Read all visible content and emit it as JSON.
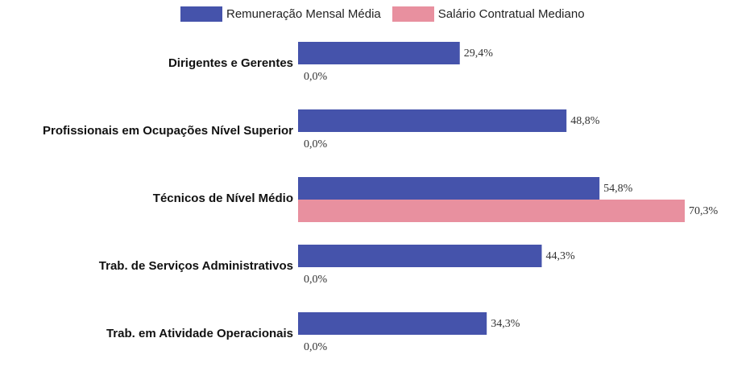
{
  "chart_data": {
    "type": "bar",
    "orientation": "horizontal",
    "categories": [
      "Dirigentes e Gerentes",
      "Profissionais em Ocupações Nível Superior",
      "Técnicos de Nível Médio",
      "Trab. de Serviços Administrativos",
      "Trab. em Atividade Operacionais"
    ],
    "series": [
      {
        "name": "Remuneração Mensal Média",
        "color": "#4553ab",
        "values": [
          29.4,
          48.8,
          54.8,
          44.3,
          34.3
        ],
        "labels": [
          "29,4%",
          "48,8%",
          "54,8%",
          "44,3%",
          "34,3%"
        ]
      },
      {
        "name": "Salário Contratual Mediano",
        "color": "#e8909f",
        "values": [
          0.0,
          0.0,
          70.3,
          0.0,
          0.0
        ],
        "labels": [
          "0,0%",
          "0,0%",
          "70,3%",
          "0,0%",
          "0,0%"
        ]
      }
    ],
    "xlim": [
      0,
      70.3
    ],
    "grid": false,
    "legend_position": "top"
  }
}
